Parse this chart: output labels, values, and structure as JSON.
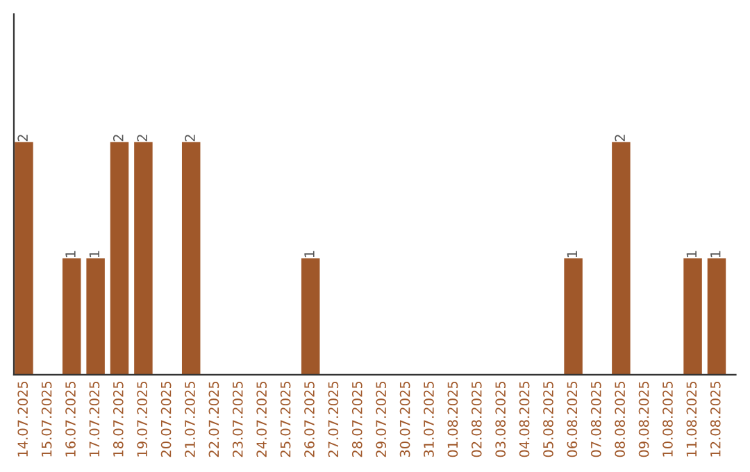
{
  "chart_data": {
    "type": "bar",
    "categories": [
      "14.07.2025",
      "15.07.2025",
      "16.07.2025",
      "17.07.2025",
      "18.07.2025",
      "19.07.2025",
      "20.07.2025",
      "21.07.2025",
      "22.07.2025",
      "23.07.2025",
      "24.07.2025",
      "25.07.2025",
      "26.07.2025",
      "27.07.2025",
      "28.07.2025",
      "29.07.2025",
      "30.07.2025",
      "31.07.2025",
      "01.08.2025",
      "02.08.2025",
      "03.08.2025",
      "04.08.2025",
      "05.08.2025",
      "06.08.2025",
      "07.08.2025",
      "08.08.2025",
      "09.08.2025",
      "10.08.2025",
      "11.08.2025",
      "12.08.2025"
    ],
    "values": [
      2,
      0,
      1,
      1,
      2,
      2,
      0,
      2,
      0,
      0,
      0,
      0,
      1,
      0,
      0,
      0,
      0,
      0,
      0,
      0,
      0,
      0,
      0,
      1,
      0,
      2,
      0,
      0,
      1,
      1
    ],
    "value_labels": [
      "2",
      null,
      "1",
      "1",
      "2",
      "2",
      null,
      "2",
      null,
      null,
      null,
      null,
      "1",
      null,
      null,
      null,
      null,
      null,
      null,
      null,
      null,
      null,
      null,
      "1",
      null,
      "2",
      null,
      null,
      "1",
      "1"
    ],
    "color": "#a0582a",
    "ylim": [
      0,
      3.1
    ],
    "tick_labels": "x",
    "grid": false
  }
}
